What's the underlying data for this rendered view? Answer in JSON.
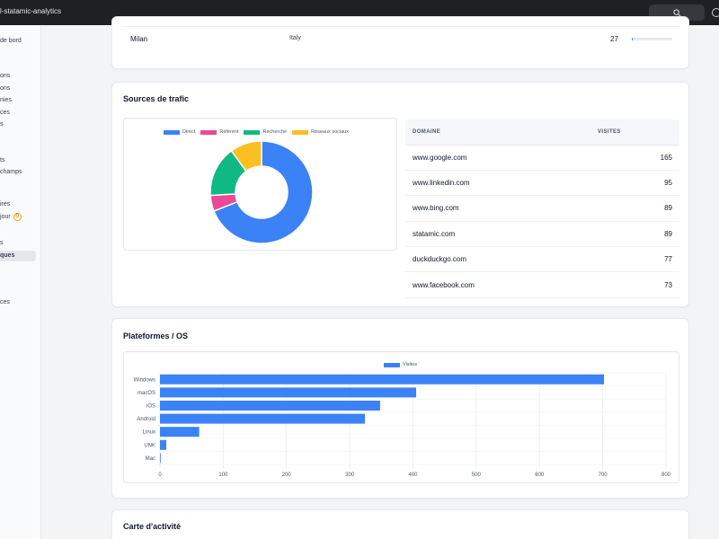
{
  "app": {
    "title": "l-statamic-analytics"
  },
  "colors": {
    "accent": "#3b82f6",
    "direct": "#3b82f6",
    "referent": "#ec4899",
    "recherche": "#10b981",
    "reseaux": "#fbbf24"
  },
  "sidebar": {
    "items": [
      {
        "label": "de bord"
      },
      {
        "label": "ons"
      },
      {
        "label": "ons"
      },
      {
        "label": "nies"
      },
      {
        "label": "ces"
      },
      {
        "label": "s"
      },
      {
        "label": "ts"
      },
      {
        "label": "champs"
      },
      {
        "label": "ires"
      },
      {
        "label": "jour",
        "badge": "0"
      },
      {
        "label": "s"
      },
      {
        "label": "ques",
        "active": true
      },
      {
        "label": "ces"
      }
    ]
  },
  "cities": {
    "rows": [
      {
        "city": "Milan",
        "country": "Italy",
        "count": "27",
        "fraction": 0.03
      }
    ]
  },
  "traffic": {
    "title": "Sources de trafic",
    "table": {
      "headers": [
        "DOMAINE",
        "VISITES"
      ],
      "rows": [
        {
          "domain": "www.google.com",
          "visits": "165"
        },
        {
          "domain": "www.linkedin.com",
          "visits": "95"
        },
        {
          "domain": "www.bing.com",
          "visits": "89"
        },
        {
          "domain": "statamic.com",
          "visits": "89"
        },
        {
          "domain": "duckduckgo.com",
          "visits": "77"
        },
        {
          "domain": "www.facebook.com",
          "visits": "73"
        }
      ]
    }
  },
  "platforms": {
    "title": "Plateformes / OS"
  },
  "activity": {
    "title": "Carte d'activité"
  },
  "chart_data": [
    {
      "type": "pie",
      "donut": true,
      "legend": "top",
      "categories": [
        "Direct",
        "Référent",
        "Recherche",
        "Réseaux sociaux"
      ],
      "values": [
        69,
        5,
        16,
        10
      ],
      "colors": [
        "#3b82f6",
        "#ec4899",
        "#10b981",
        "#fbbf24"
      ]
    },
    {
      "type": "bar",
      "orientation": "horizontal",
      "categories": [
        "Windows",
        "macOS",
        "iOS",
        "Android",
        "Linux",
        "UNK",
        "Mac"
      ],
      "series": [
        {
          "name": "Visites",
          "values": [
            702,
            405,
            348,
            324,
            62,
            10,
            1
          ],
          "color": "#3b82f6"
        }
      ],
      "xlim": [
        0,
        800
      ],
      "xticks": [
        0,
        100,
        200,
        300,
        400,
        500,
        600,
        700,
        800
      ],
      "grid": true,
      "legend": "top"
    }
  ]
}
